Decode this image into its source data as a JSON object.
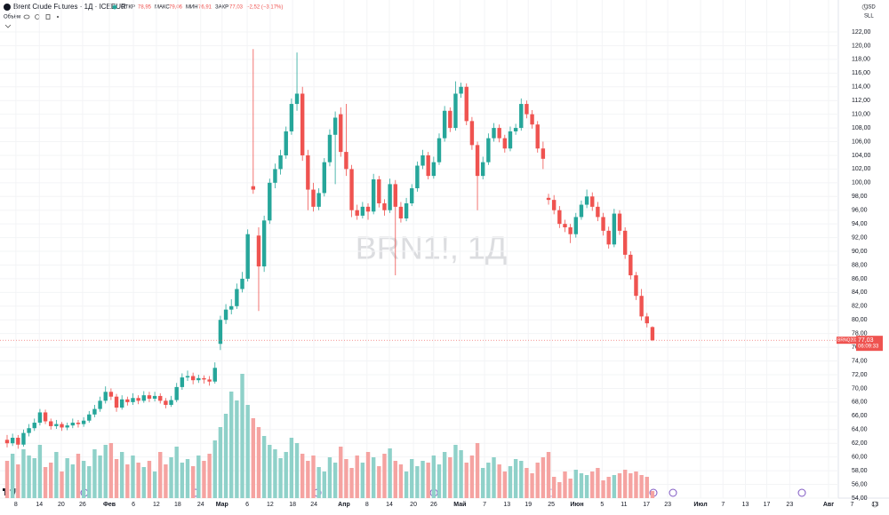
{
  "chart_data": {
    "type": "candlestick",
    "header": {
      "title": "Brent Crude Futures · 1Д · ICEEUR",
      "open_label": "ОТКР",
      "open": "78,95",
      "high_label": "МАКС",
      "high": "79,06",
      "low_label": "МИН",
      "low": "76,91",
      "close_label": "ЗАКР",
      "close": "77,03",
      "change": "−2,52 (−3,17%)"
    },
    "volume_label": "Объём",
    "watermark": "BRN1!, 1Д",
    "currency": "USD",
    "unit": "SLL",
    "symbol": "BRNQ2022",
    "last_label": "77,03",
    "countdown": "06:09:33",
    "up_color": "#26a69a",
    "down_color": "#ef5350",
    "volume_up_color": "#8fd1c9",
    "volume_down_color": "#f5a3a1",
    "open": [
      62.5,
      62.0,
      62.8,
      61.8,
      63.5,
      64.2,
      65.0,
      66.5,
      65.2,
      64.5,
      64.8,
      64.3,
      64.6,
      65.0,
      64.8,
      65.3,
      66.2,
      67.0,
      68.2,
      69.5,
      68.8,
      67.2,
      68.4,
      68.0,
      68.6,
      68.2,
      69.0,
      68.5,
      68.9,
      68.2,
      67.6,
      68.3,
      70.2,
      71.6,
      71.8,
      71.2,
      71.5,
      71.3,
      71.0,
      76.5,
      80.0,
      81.5,
      82.0,
      84.5,
      86.0,
      99.5,
      92.3,
      87.8,
      94.5,
      100.0,
      102.0,
      104.0,
      107.5,
      111.5,
      113.0,
      104.0,
      99.0,
      96.5,
      98.5,
      103.0,
      107.0,
      110.0,
      104.5,
      102.0,
      96.0,
      95.2,
      96.5,
      95.8,
      100.5,
      97.0,
      96.0,
      99.8,
      96.5,
      94.8,
      97.0,
      99.2,
      102.5,
      104.0,
      101.0,
      103.0,
      106.5,
      110.5,
      108.0,
      113.0,
      114.0,
      109.0,
      105.5,
      101.0,
      103.0,
      106.5,
      108.0,
      106.5,
      105.0,
      107.5,
      108.0,
      111.5,
      110.0,
      108.5,
      105.0,
      97.8,
      97.5,
      96.0,
      94.0,
      93.5,
      92.5,
      95.0,
      96.8,
      98.0,
      96.5,
      95.0,
      93.0,
      91.0,
      95.5,
      93.0,
      89.5,
      86.5,
      83.5,
      80.5,
      78.95
    ],
    "high": [
      63.2,
      63.4,
      63.2,
      64.0,
      64.8,
      65.6,
      67.0,
      66.9,
      65.6,
      65.4,
      65.1,
      65.0,
      65.6,
      65.4,
      65.8,
      66.7,
      67.6,
      68.8,
      70.3,
      70.0,
      69.2,
      69.0,
      68.8,
      69.3,
      69.0,
      69.6,
      69.5,
      69.5,
      69.3,
      68.6,
      68.9,
      70.8,
      72.2,
      72.6,
      72.3,
      72.0,
      71.9,
      71.8,
      73.8,
      80.6,
      82.3,
      83.0,
      85.3,
      87.0,
      93.2,
      119.5,
      93.5,
      95.2,
      100.6,
      102.8,
      104.8,
      108.2,
      112.3,
      119.0,
      114.0,
      104.8,
      100.0,
      99.2,
      103.6,
      107.8,
      110.4,
      111.0,
      111.5,
      102.6,
      96.8,
      97.2,
      97.0,
      101.3,
      101.0,
      97.6,
      100.6,
      100.4,
      97.2,
      97.8,
      99.8,
      103.1,
      104.8,
      104.5,
      103.8,
      107.2,
      111.2,
      111.0,
      114.8,
      114.6,
      114.5,
      109.6,
      106.0,
      103.8,
      107.2,
      108.7,
      108.5,
      107.0,
      108.2,
      108.6,
      112.3,
      112.0,
      110.6,
      109.0,
      106.0,
      98.4,
      98.2,
      96.6,
      94.6,
      94.0,
      95.6,
      97.4,
      99.0,
      98.6,
      97.2,
      95.6,
      93.6,
      96.2,
      96.0,
      93.5,
      90.0,
      87.0,
      84.5,
      81.0,
      79.06
    ],
    "low": [
      61.4,
      61.6,
      61.2,
      61.5,
      63.0,
      63.8,
      64.6,
      64.8,
      64.0,
      64.1,
      63.8,
      63.9,
      64.2,
      64.3,
      64.4,
      65.0,
      65.8,
      66.6,
      67.8,
      68.3,
      66.6,
      66.9,
      67.5,
      67.6,
      67.7,
      67.9,
      68.0,
      68.1,
      67.8,
      67.1,
      67.3,
      68.0,
      69.8,
      71.1,
      70.6,
      70.8,
      70.7,
      70.4,
      70.7,
      75.6,
      79.4,
      80.8,
      81.6,
      84.0,
      85.6,
      98.4,
      81.3,
      87.0,
      94.0,
      99.2,
      101.2,
      103.5,
      107.0,
      110.5,
      103.2,
      96.0,
      95.8,
      96.0,
      98.0,
      102.4,
      99.8,
      103.8,
      101.0,
      95.0,
      94.6,
      94.8,
      94.6,
      95.4,
      96.4,
      95.2,
      95.6,
      86.5,
      94.2,
      94.4,
      96.6,
      98.7,
      102.0,
      100.5,
      100.6,
      102.6,
      106.0,
      107.4,
      107.6,
      112.4,
      108.4,
      104.8,
      96.0,
      100.5,
      102.6,
      106.0,
      105.9,
      104.4,
      104.6,
      107.0,
      107.6,
      109.4,
      107.9,
      104.4,
      102.0,
      96.8,
      95.4,
      93.4,
      92.8,
      91.2,
      92.0,
      94.6,
      96.3,
      95.9,
      94.4,
      92.3,
      90.4,
      90.6,
      92.4,
      88.9,
      85.9,
      82.9,
      79.9,
      78.9,
      76.91
    ],
    "close": [
      62.0,
      62.8,
      61.8,
      63.5,
      64.2,
      65.0,
      66.5,
      65.2,
      64.5,
      64.8,
      64.3,
      64.6,
      65.0,
      64.8,
      65.3,
      66.2,
      67.0,
      68.2,
      69.5,
      68.8,
      67.2,
      68.4,
      68.0,
      68.6,
      68.2,
      69.0,
      68.5,
      68.9,
      68.2,
      67.6,
      68.3,
      70.2,
      71.6,
      71.8,
      71.2,
      71.5,
      71.3,
      71.0,
      73.0,
      80.0,
      81.5,
      82.0,
      84.5,
      86.0,
      92.5,
      99.0,
      87.8,
      94.5,
      100.0,
      102.0,
      104.0,
      107.5,
      111.5,
      113.0,
      104.0,
      99.0,
      96.5,
      98.5,
      103.0,
      107.0,
      109.5,
      104.5,
      102.0,
      96.0,
      95.2,
      96.5,
      95.8,
      100.5,
      97.0,
      96.0,
      99.8,
      96.5,
      94.8,
      97.0,
      99.2,
      102.5,
      104.0,
      101.0,
      103.0,
      106.5,
      110.5,
      108.0,
      113.0,
      114.0,
      109.0,
      105.5,
      101.0,
      103.0,
      106.5,
      108.0,
      106.5,
      105.0,
      107.5,
      108.0,
      111.5,
      110.0,
      108.5,
      105.0,
      103.5,
      97.5,
      96.0,
      94.0,
      93.5,
      92.5,
      95.0,
      96.8,
      98.0,
      96.5,
      95.0,
      93.0,
      91.0,
      95.5,
      93.0,
      89.5,
      86.5,
      83.5,
      80.5,
      79.5,
      77.03
    ],
    "volume": [
      42,
      50,
      38,
      55,
      48,
      45,
      60,
      35,
      40,
      52,
      30,
      45,
      38,
      50,
      42,
      36,
      55,
      48,
      60,
      62,
      44,
      52,
      38,
      48,
      40,
      35,
      42,
      30,
      52,
      38,
      46,
      58,
      40,
      44,
      36,
      48,
      42,
      50,
      65,
      80,
      95,
      120,
      110,
      140,
      105,
      90,
      80,
      70,
      60,
      55,
      45,
      52,
      68,
      62,
      50,
      42,
      48,
      35,
      30,
      46,
      40,
      58,
      44,
      34,
      48,
      40,
      52,
      46,
      36,
      50,
      56,
      42,
      38,
      30,
      44,
      36,
      42,
      40,
      48,
      38,
      52,
      46,
      60,
      54,
      40,
      48,
      62,
      34,
      40,
      46,
      38,
      30,
      36,
      44,
      42,
      34,
      28,
      40,
      46,
      52,
      24,
      18,
      30,
      22,
      32,
      28,
      26,
      30,
      34,
      20,
      24,
      26,
      28,
      32,
      28,
      30,
      26,
      24,
      8
    ],
    "ylim": [
      54,
      122
    ],
    "yticks": [
      {
        "value": 122,
        "label": "122,00"
      },
      {
        "value": 120,
        "label": "120,00"
      },
      {
        "value": 118,
        "label": "118,00"
      },
      {
        "value": 116,
        "label": "116,00"
      },
      {
        "value": 114,
        "label": "114,00"
      },
      {
        "value": 112,
        "label": "112,00"
      },
      {
        "value": 110,
        "label": "110,00"
      },
      {
        "value": 108,
        "label": "108,00"
      },
      {
        "value": 106,
        "label": "106,00"
      },
      {
        "value": 104,
        "label": "104,00"
      },
      {
        "value": 102,
        "label": "102,00"
      },
      {
        "value": 100,
        "label": "100,00"
      },
      {
        "value": 98,
        "label": "98,00"
      },
      {
        "value": 96,
        "label": "96,00"
      },
      {
        "value": 94,
        "label": "94,00"
      },
      {
        "value": 92,
        "label": "92,00"
      },
      {
        "value": 90,
        "label": "90,00"
      },
      {
        "value": 88,
        "label": "88,00"
      },
      {
        "value": 86,
        "label": "86,00"
      },
      {
        "value": 84,
        "label": "84,00"
      },
      {
        "value": 82,
        "label": "82,00"
      },
      {
        "value": 80,
        "label": "80,00"
      },
      {
        "value": 78,
        "label": "78,00"
      },
      {
        "value": 76,
        "label": "76,00"
      },
      {
        "value": 74,
        "label": "74,00"
      },
      {
        "value": 72,
        "label": "72,00"
      },
      {
        "value": 70,
        "label": "70,00"
      },
      {
        "value": 68,
        "label": "68,00"
      },
      {
        "value": 66,
        "label": "66,00"
      },
      {
        "value": 64,
        "label": "64,00"
      },
      {
        "value": 62,
        "label": "62,00"
      },
      {
        "value": 60,
        "label": "60,00"
      },
      {
        "value": 58,
        "label": "58,00"
      },
      {
        "value": 56,
        "label": "56,00"
      },
      {
        "value": 54,
        "label": "54,00"
      }
    ],
    "xlim": [
      -1.3,
      151.5
    ],
    "xticks": [
      {
        "value": 1.6,
        "label": "8"
      },
      {
        "value": 5.9,
        "label": "14"
      },
      {
        "value": 9.9,
        "label": "20"
      },
      {
        "value": 13.8,
        "label": "26"
      },
      {
        "value": 18.7,
        "label": "Фев"
      },
      {
        "value": 23.1,
        "label": "6"
      },
      {
        "value": 27.3,
        "label": "12"
      },
      {
        "value": 31.2,
        "label": "18"
      },
      {
        "value": 35.4,
        "label": "24"
      },
      {
        "value": 39.3,
        "label": "Мар"
      },
      {
        "value": 43.9,
        "label": "6"
      },
      {
        "value": 48.1,
        "label": "12"
      },
      {
        "value": 52.2,
        "label": "18"
      },
      {
        "value": 56.1,
        "label": "24"
      },
      {
        "value": 61.6,
        "label": "Апр"
      },
      {
        "value": 65.8,
        "label": "8"
      },
      {
        "value": 69.9,
        "label": "14"
      },
      {
        "value": 74.3,
        "label": "20"
      },
      {
        "value": 78,
        "label": "26"
      },
      {
        "value": 82.8,
        "label": "Май"
      },
      {
        "value": 87.3,
        "label": "7"
      },
      {
        "value": 91.4,
        "label": "13"
      },
      {
        "value": 95.3,
        "label": "19"
      },
      {
        "value": 99.5,
        "label": "25"
      },
      {
        "value": 104.2,
        "label": "Июн"
      },
      {
        "value": 108.8,
        "label": "5"
      },
      {
        "value": 112.8,
        "label": "11"
      },
      {
        "value": 116.9,
        "label": "17"
      },
      {
        "value": 120.8,
        "label": "23"
      },
      {
        "value": 126.8,
        "label": "Июл"
      },
      {
        "value": 130.9,
        "label": "7"
      },
      {
        "value": 135,
        "label": "13"
      },
      {
        "value": 138.9,
        "label": "17"
      },
      {
        "value": 143.1,
        "label": "23"
      },
      {
        "value": 150.2,
        "label": "Авг"
      },
      {
        "value": 154.5,
        "label": "7"
      },
      {
        "value": 158.7,
        "label": "13"
      }
    ]
  }
}
